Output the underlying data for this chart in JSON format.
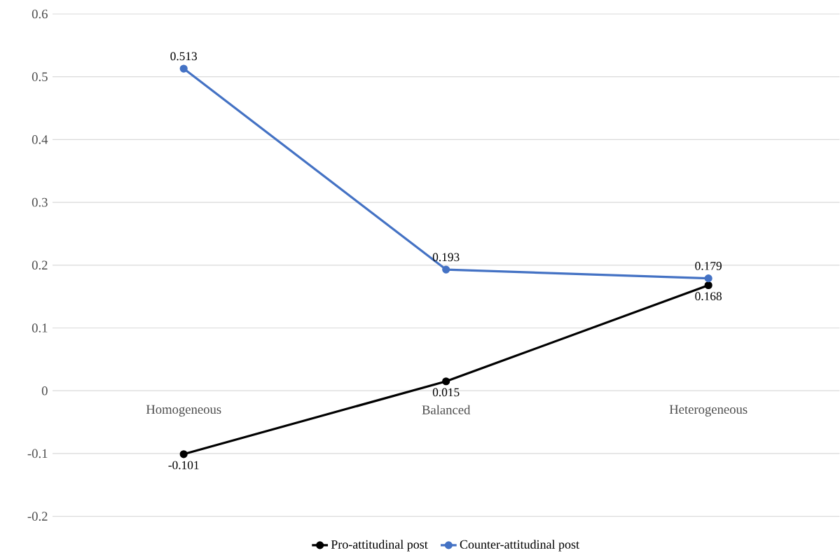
{
  "chart_data": {
    "type": "line",
    "categories": [
      "Homogeneous",
      "Balanced",
      "Heterogeneous"
    ],
    "series": [
      {
        "name": "Pro-attitudinal post",
        "color": "#000000",
        "values": [
          -0.101,
          0.015,
          0.168
        ]
      },
      {
        "name": "Counter-attitudinal post",
        "color": "#4472c4",
        "values": [
          0.513,
          0.193,
          0.179
        ]
      }
    ],
    "ylim": [
      -0.2,
      0.6
    ],
    "yticks": [
      -0.2,
      -0.1,
      0,
      0.1,
      0.2,
      0.3,
      0.4,
      0.5,
      0.6
    ],
    "grid": "y",
    "legend": "bottom",
    "marker": "circle",
    "line_style": "solid",
    "data_labels": true
  }
}
